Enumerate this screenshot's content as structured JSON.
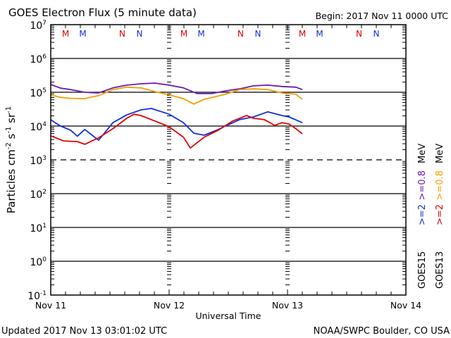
{
  "chart_data": {
    "type": "line",
    "title": "GOES Electron Flux (5 minute data)",
    "subtitle": "Begin: 2017 Nov 11 0000 UTC",
    "xlabel": "Universal Time",
    "ylabel": "Particles cm",
    "ylabel_parts": [
      {
        "text": "Particles cm",
        "sup": "-2"
      },
      {
        "text": "s",
        "sup": "-1"
      },
      {
        "text": "sr",
        "sup": "-1"
      }
    ],
    "yscale": "log",
    "ylim_log10": [
      -1,
      7
    ],
    "xlim_hours": [
      0,
      72
    ],
    "x_unit": "hours since 2017 Nov 11 0000 UTC",
    "y_unit": "log10 particle flux",
    "x_ticks": [
      {
        "hour": 0,
        "label": "Nov 11"
      },
      {
        "hour": 24,
        "label": "Nov 12"
      },
      {
        "hour": 48,
        "label": "Nov 13"
      },
      {
        "hour": 72,
        "label": "Nov 14"
      }
    ],
    "y_ticks": [
      {
        "exp": 7,
        "base": "10",
        "sup": "7"
      },
      {
        "exp": 6,
        "base": "10",
        "sup": "6"
      },
      {
        "exp": 5,
        "base": "10",
        "sup": "5"
      },
      {
        "exp": 4,
        "base": "10",
        "sup": "4"
      },
      {
        "exp": 3,
        "base": "10",
        "sup": "3"
      },
      {
        "exp": 2,
        "base": "10",
        "sup": "2"
      },
      {
        "exp": 1,
        "base": "10",
        "sup": "1"
      },
      {
        "exp": 0,
        "base": "10",
        "sup": "0"
      },
      {
        "exp": -1,
        "base": "10",
        "sup": "-1"
      }
    ],
    "threshold_log10": 3,
    "grid": true,
    "markers": [
      {
        "hour": 3,
        "label": "M",
        "color": "#e00000"
      },
      {
        "hour": 6.5,
        "label": "M",
        "color": "#1030e0"
      },
      {
        "hour": 14.5,
        "label": "N",
        "color": "#e00000"
      },
      {
        "hour": 18,
        "label": "N",
        "color": "#1030e0"
      },
      {
        "hour": 27,
        "label": "M",
        "color": "#e00000"
      },
      {
        "hour": 30.5,
        "label": "M",
        "color": "#1030e0"
      },
      {
        "hour": 38.5,
        "label": "N",
        "color": "#e00000"
      },
      {
        "hour": 42,
        "label": "N",
        "color": "#1030e0"
      },
      {
        "hour": 51,
        "label": "M",
        "color": "#e00000"
      },
      {
        "hour": 54.5,
        "label": "M",
        "color": "#1030e0"
      },
      {
        "hour": 62.5,
        "label": "N",
        "color": "#e00000"
      },
      {
        "hour": 66,
        "label": "N",
        "color": "#1030e0"
      }
    ],
    "legend": {
      "placement": "right",
      "columns": [
        {
          "satellite": "GOES15",
          "entries": [
            {
              "label": ">=2",
              "color": "#1030e0"
            },
            {
              "label": ">=0.8",
              "color": "#6a1ab0"
            },
            {
              "label": "MeV",
              "color": "#000000"
            }
          ]
        },
        {
          "satellite": "GOES13",
          "entries": [
            {
              "label": ">=2",
              "color": "#e00000"
            },
            {
              "label": ">=0.8",
              "color": "#f0a000"
            },
            {
              "label": "MeV",
              "color": "#000000"
            }
          ]
        }
      ]
    },
    "series": [
      {
        "name": "GOES15 >=0.8 MeV",
        "color": "#6a1ab0",
        "x": [
          0,
          2,
          4,
          6.9,
          8,
          9.7,
          12.6,
          15.4,
          18.3,
          21.1,
          24,
          26.9,
          29.7,
          32.6,
          35.4,
          38.3,
          41.1,
          44,
          46.9,
          49.7,
          51
        ],
        "y": [
          5.23,
          5.12,
          5.08,
          5.0,
          4.99,
          4.98,
          5.13,
          5.21,
          5.25,
          5.27,
          5.21,
          5.13,
          4.96,
          4.96,
          5.04,
          5.1,
          5.19,
          5.21,
          5.17,
          5.15,
          5.08
        ]
      },
      {
        "name": "GOES13 >=0.8 MeV",
        "color": "#f0a000",
        "x": [
          0,
          2,
          4,
          6.9,
          8,
          9.7,
          12.6,
          15.4,
          18.3,
          21.1,
          24,
          26.9,
          29,
          31.1,
          35.4,
          38.3,
          41.1,
          44,
          46.9,
          49.7,
          51
        ],
        "y": [
          4.92,
          4.85,
          4.82,
          4.81,
          4.85,
          4.9,
          5.08,
          5.15,
          5.13,
          5.02,
          4.92,
          4.81,
          4.65,
          4.79,
          4.94,
          5.08,
          5.1,
          5.08,
          4.98,
          4.94,
          4.79
        ]
      },
      {
        "name": "GOES15 >=2 MeV",
        "color": "#1030e0",
        "x": [
          0,
          1.1,
          2,
          4,
          5.4,
          6.9,
          9.7,
          12.6,
          15.4,
          18.3,
          20.4,
          24,
          26.9,
          29,
          31.1,
          34,
          35.4,
          38.3,
          41.1,
          44,
          46.9,
          48.3,
          51
        ],
        "y": [
          4.19,
          4.08,
          4.0,
          3.88,
          3.7,
          3.9,
          3.58,
          4.1,
          4.33,
          4.48,
          4.52,
          4.35,
          4.1,
          3.79,
          3.73,
          3.9,
          4.0,
          4.19,
          4.27,
          4.42,
          4.31,
          4.27,
          4.1
        ]
      },
      {
        "name": "GOES13 >=2 MeV",
        "color": "#e00000",
        "x": [
          0,
          2.6,
          5.4,
          6.9,
          9.7,
          12.6,
          15.4,
          16.9,
          18.3,
          21.1,
          24,
          26.9,
          28.3,
          31.1,
          34,
          36.9,
          39.7,
          41.1,
          43.3,
          45.4,
          46.9,
          48.3,
          49.7,
          51
        ],
        "y": [
          3.71,
          3.56,
          3.54,
          3.46,
          3.65,
          3.92,
          4.23,
          4.35,
          4.31,
          4.15,
          3.98,
          3.67,
          3.35,
          3.67,
          3.88,
          4.15,
          4.31,
          4.23,
          4.19,
          4.02,
          4.1,
          4.06,
          3.92,
          3.77
        ]
      }
    ]
  },
  "footer": {
    "updated": "Updated 2017 Nov 13 03:01:02 UTC",
    "credit": "NOAA/SWPC Boulder, CO USA"
  }
}
